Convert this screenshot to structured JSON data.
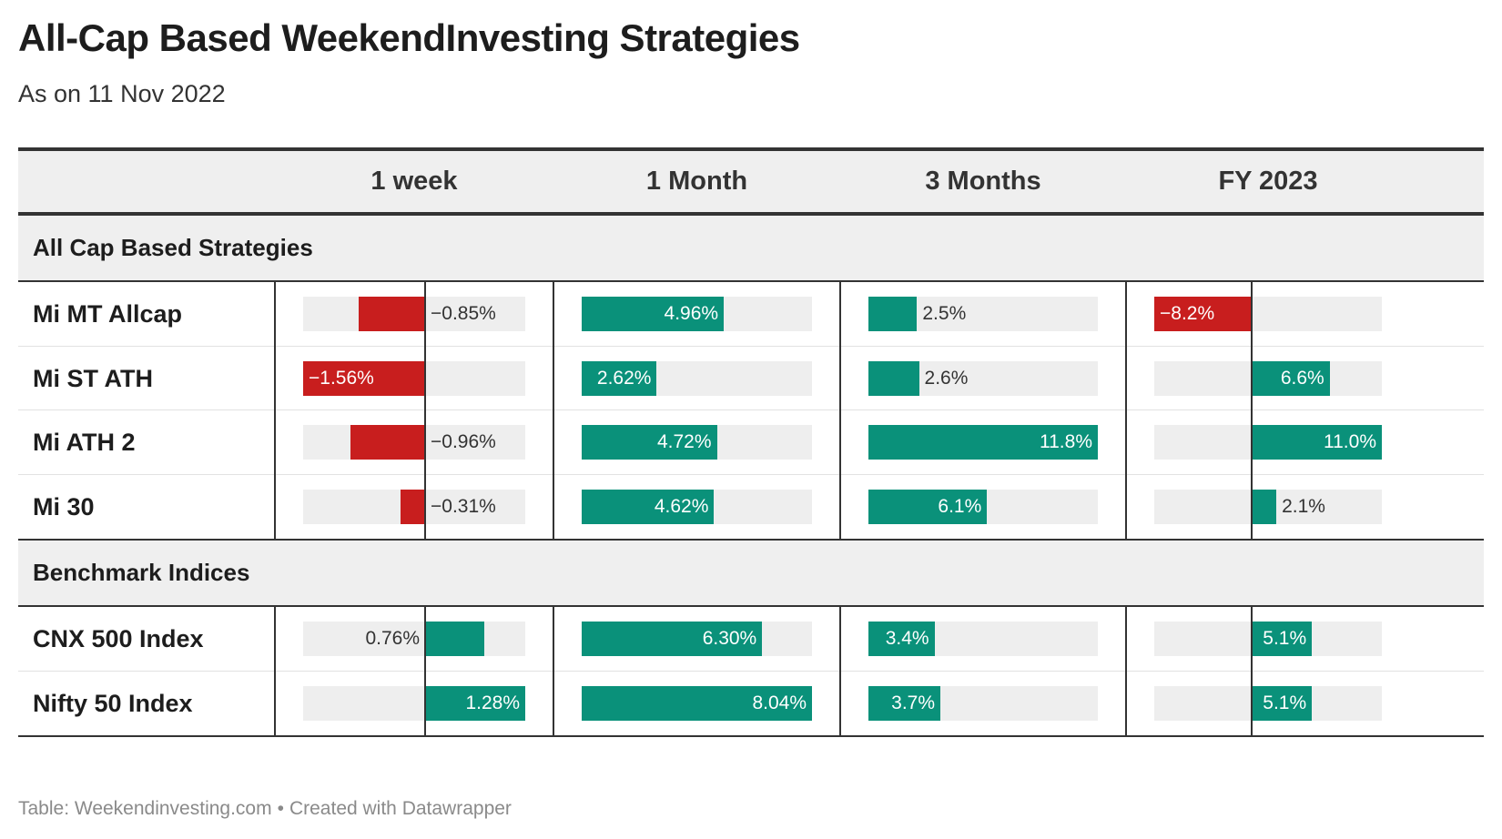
{
  "title": "All-Cap Based WeekendInvesting Strategies",
  "subtitle": "As on 11 Nov 2022",
  "footer": {
    "source": "Table: Weekendinvesting.com",
    "separator": "•",
    "credit": "Created with Datawrapper"
  },
  "colors": {
    "positive": "#0a917a",
    "negative": "#c81e1e",
    "bar_background": "#eeeeee",
    "header_background": "#efefef",
    "rule": "#333333"
  },
  "chart_data": {
    "type": "table",
    "columns": [
      "1 week",
      "1 Month",
      "3 Months",
      "FY 2023"
    ],
    "column_ranges": [
      [
        -1.56,
        1.28
      ],
      [
        0,
        8.04
      ],
      [
        0,
        11.8
      ],
      [
        -8.2,
        11.0
      ]
    ],
    "groups": [
      {
        "name": "All Cap Based Strategies",
        "rows": [
          {
            "label": "Mi MT Allcap",
            "values": [
              -0.85,
              4.96,
              2.5,
              -8.2
            ],
            "display": [
              "−0.85%",
              "4.96%",
              "2.5%",
              "−8.2%"
            ]
          },
          {
            "label": "Mi ST ATH",
            "values": [
              -1.56,
              2.62,
              2.6,
              6.6
            ],
            "display": [
              "−1.56%",
              "2.62%",
              "2.6%",
              "6.6%"
            ]
          },
          {
            "label": "Mi ATH 2",
            "values": [
              -0.96,
              4.72,
              11.8,
              11.0
            ],
            "display": [
              "−0.96%",
              "4.72%",
              "11.8%",
              "11.0%"
            ]
          },
          {
            "label": "Mi 30",
            "values": [
              -0.31,
              4.62,
              6.1,
              2.1
            ],
            "display": [
              "−0.31%",
              "4.62%",
              "6.1%",
              "2.1%"
            ]
          }
        ]
      },
      {
        "name": "Benchmark Indices",
        "rows": [
          {
            "label": "CNX 500 Index",
            "values": [
              0.76,
              6.3,
              3.4,
              5.1
            ],
            "display": [
              "0.76%",
              "6.30%",
              "3.4%",
              "5.1%"
            ]
          },
          {
            "label": "Nifty 50 Index",
            "values": [
              1.28,
              8.04,
              3.7,
              5.1
            ],
            "display": [
              "1.28%",
              "8.04%",
              "3.7%",
              "5.1%"
            ]
          }
        ]
      }
    ]
  }
}
